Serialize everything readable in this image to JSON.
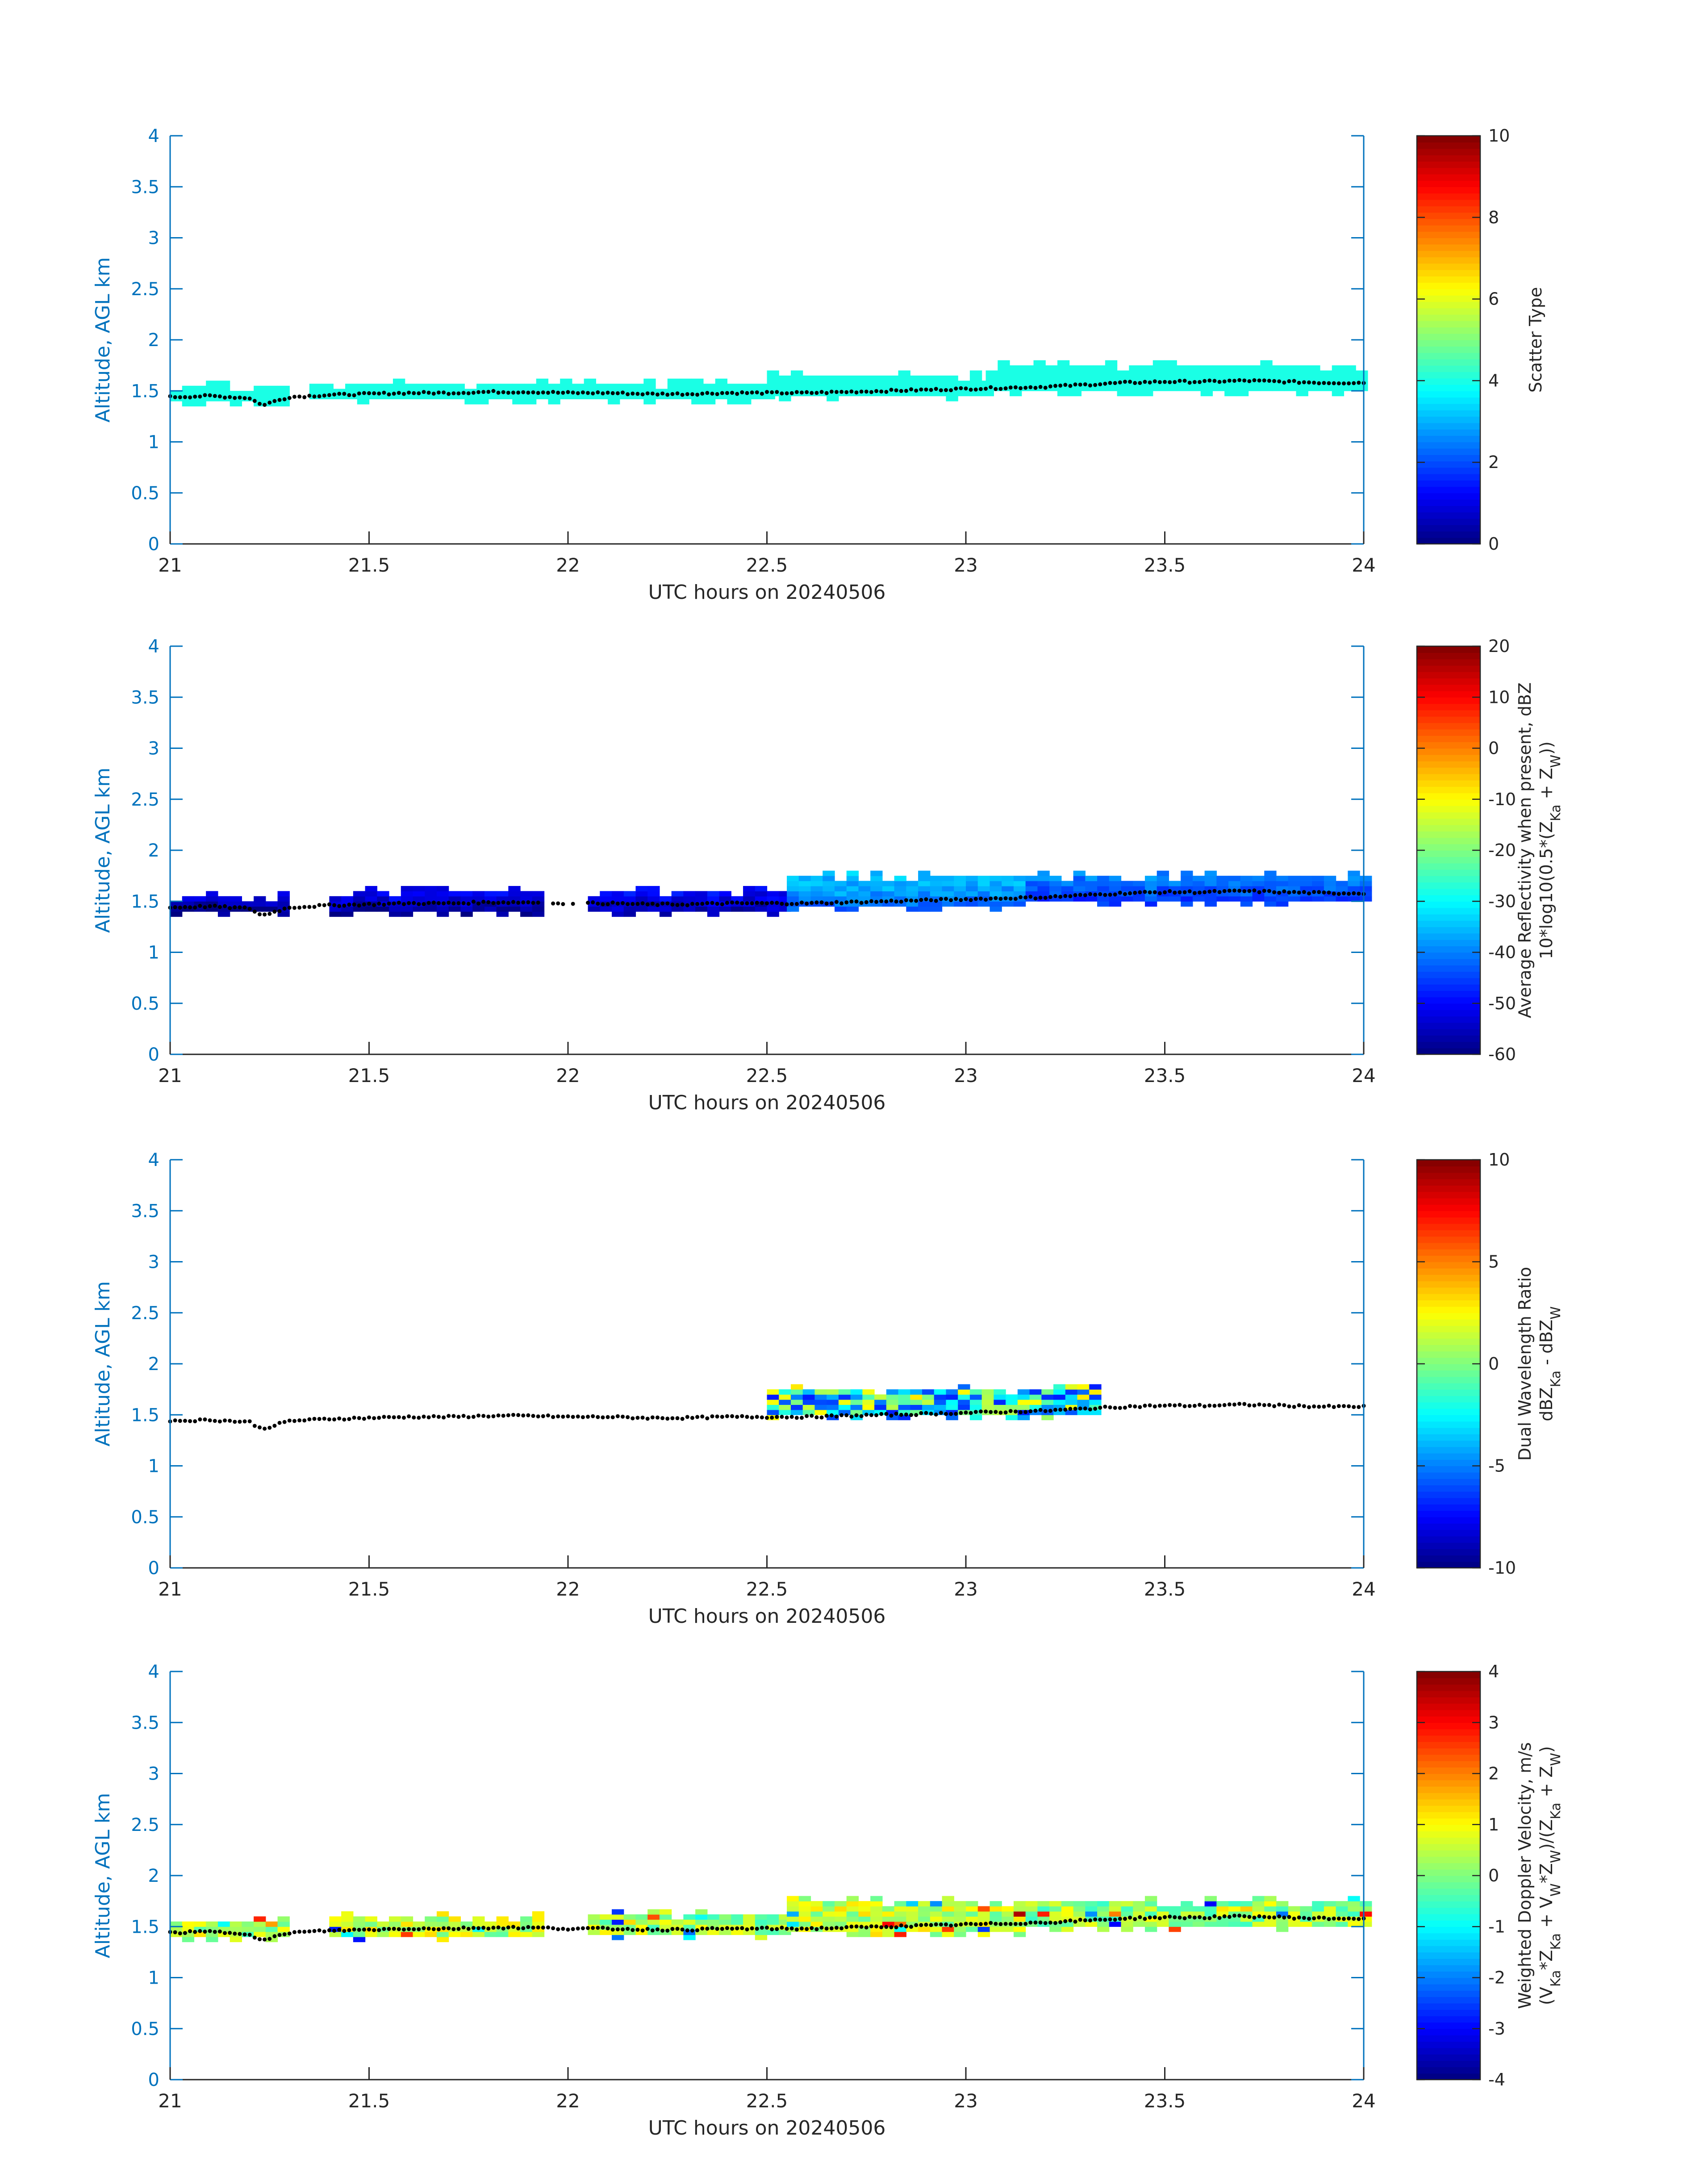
{
  "palette": {
    "axis_color": "#0072BD",
    "text_color": "#262626",
    "ct_dot_color": "#000000",
    "colormap": "jet"
  },
  "chart_data": [
    {
      "type": "heatmap",
      "variable": "scatter_type",
      "xlabel": "UTC hours on 20240506",
      "ylabel": "Altitude, AGL km",
      "xlim": [
        21,
        24
      ],
      "ylim": [
        0,
        4
      ],
      "xticks": [
        "21",
        "21.5",
        "22",
        "22.5",
        "23",
        "23.5",
        "24"
      ],
      "yticks": [
        "0",
        "0.5",
        "1",
        "1.5",
        "2",
        "2.5",
        "3",
        "3.5",
        "4"
      ],
      "colorbar": {
        "label_lines": [
          "Scatter Type"
        ],
        "clim": [
          0,
          10
        ],
        "ticks": [
          "0",
          "2",
          "4",
          "6",
          "8",
          "10"
        ]
      },
      "cloud_segments": [
        {
          "x0": 21.0,
          "x1": 21.3,
          "bottom": 1.4,
          "top": 1.55,
          "value": 4
        },
        {
          "x0": 21.35,
          "x1": 22.5,
          "bottom": 1.42,
          "top": 1.57,
          "value": 4
        },
        {
          "x0": 22.5,
          "x1": 23.05,
          "bottom": 1.45,
          "top": 1.65,
          "value": 4
        },
        {
          "x0": 23.05,
          "x1": 24.0,
          "bottom": 1.5,
          "top": 1.72,
          "value": 4
        }
      ]
    },
    {
      "type": "heatmap",
      "variable": "reflectivity",
      "xlabel": "UTC hours on 20240506",
      "ylabel": "Altitude, AGL km",
      "xlim": [
        21,
        24
      ],
      "ylim": [
        0,
        4
      ],
      "xticks": [
        "21",
        "21.5",
        "22",
        "22.5",
        "23",
        "23.5",
        "24"
      ],
      "yticks": [
        "0",
        "0.5",
        "1",
        "1.5",
        "2",
        "2.5",
        "3",
        "3.5",
        "4"
      ],
      "colorbar": {
        "label_lines": [
          "Average Reflectivity when present, dBZ",
          "10*log10(0.5*(Z_Ka + Z_W))"
        ],
        "clim": [
          -60,
          20
        ],
        "ticks": [
          "-60",
          "-50",
          "-40",
          "-30",
          "-20",
          "-10",
          "0",
          "10",
          "20"
        ]
      },
      "cloud_segments": [
        {
          "x0": 21.0,
          "x1": 21.3,
          "bottom": 1.4,
          "top": 1.55,
          "value": -55
        },
        {
          "x0": 21.4,
          "x1": 21.92,
          "bottom": 1.4,
          "top": 1.58,
          "value": -54
        },
        {
          "x0": 22.05,
          "x1": 22.55,
          "bottom": 1.4,
          "top": 1.6,
          "value": -52
        },
        {
          "x0": 22.55,
          "x1": 23.15,
          "bottom": 1.45,
          "top": 1.72,
          "value": -38
        },
        {
          "x0": 23.15,
          "x1": 24.0,
          "bottom": 1.5,
          "top": 1.75,
          "value": -42
        }
      ]
    },
    {
      "type": "heatmap",
      "variable": "dual_wavelength_ratio",
      "xlabel": "UTC hours on 20240506",
      "ylabel": "Altitude, AGL km",
      "xlim": [
        21,
        24
      ],
      "ylim": [
        0,
        4
      ],
      "xticks": [
        "21",
        "21.5",
        "22",
        "22.5",
        "23",
        "23.5",
        "24"
      ],
      "yticks": [
        "0",
        "0.5",
        "1",
        "1.5",
        "2",
        "2.5",
        "3",
        "3.5",
        "4"
      ],
      "colorbar": {
        "label_lines": [
          "Dual Wavelength Ratio",
          "dBZ_Ka - dBZ_W"
        ],
        "clim": [
          -10,
          10
        ],
        "ticks": [
          "-10",
          "-5",
          "0",
          "5",
          "10"
        ]
      },
      "cloud_segments": [
        {
          "x0": 22.5,
          "x1": 23.32,
          "bottom": 1.5,
          "top": 1.72,
          "value": -2
        }
      ]
    },
    {
      "type": "heatmap",
      "variable": "doppler_velocity",
      "xlabel": "UTC hours on 20240506",
      "ylabel": "Altitude, AGL km",
      "xlim": [
        21,
        24
      ],
      "ylim": [
        0,
        4
      ],
      "xticks": [
        "21",
        "21.5",
        "22",
        "22.5",
        "23",
        "23.5",
        "24"
      ],
      "yticks": [
        "0",
        "0.5",
        "1",
        "1.5",
        "2",
        "2.5",
        "3",
        "3.5",
        "4"
      ],
      "colorbar": {
        "label_lines": [
          "Weighted Doppler Velocity, m/s",
          "(V_Ka*Z_Ka + V_W*Z_W)/(Z_Ka + Z_W)"
        ],
        "clim": [
          -4,
          4
        ],
        "ticks": [
          "-4",
          "-3",
          "-2",
          "-1",
          "0",
          "1",
          "2",
          "3",
          "4"
        ]
      },
      "cloud_segments": [
        {
          "x0": 21.0,
          "x1": 21.3,
          "bottom": 1.4,
          "top": 1.55,
          "value": 0.2
        },
        {
          "x0": 21.4,
          "x1": 21.92,
          "bottom": 1.4,
          "top": 1.58,
          "value": 0.5
        },
        {
          "x0": 22.05,
          "x1": 22.55,
          "bottom": 1.42,
          "top": 1.6,
          "value": 0.3
        },
        {
          "x0": 22.55,
          "x1": 23.15,
          "bottom": 1.45,
          "top": 1.72,
          "value": 0.5
        },
        {
          "x0": 23.15,
          "x1": 24.0,
          "bottom": 1.5,
          "top": 1.75,
          "value": 0.2
        }
      ]
    }
  ],
  "cloud_top_series": {
    "x": [
      21.0,
      21.1,
      21.2,
      21.23,
      21.3,
      21.4,
      21.5,
      21.6,
      21.7,
      21.8,
      21.9,
      22.0,
      22.1,
      22.2,
      22.3,
      22.4,
      22.5,
      22.6,
      22.7,
      22.8,
      22.9,
      23.0,
      23.1,
      23.2,
      23.3,
      23.4,
      23.5,
      23.6,
      23.7,
      23.8,
      23.9,
      24.0
    ],
    "y": [
      1.44,
      1.45,
      1.43,
      1.36,
      1.44,
      1.46,
      1.47,
      1.48,
      1.48,
      1.49,
      1.49,
      1.48,
      1.48,
      1.47,
      1.47,
      1.48,
      1.48,
      1.48,
      1.49,
      1.5,
      1.51,
      1.52,
      1.53,
      1.54,
      1.56,
      1.58,
      1.59,
      1.59,
      1.6,
      1.59,
      1.58,
      1.58
    ]
  }
}
